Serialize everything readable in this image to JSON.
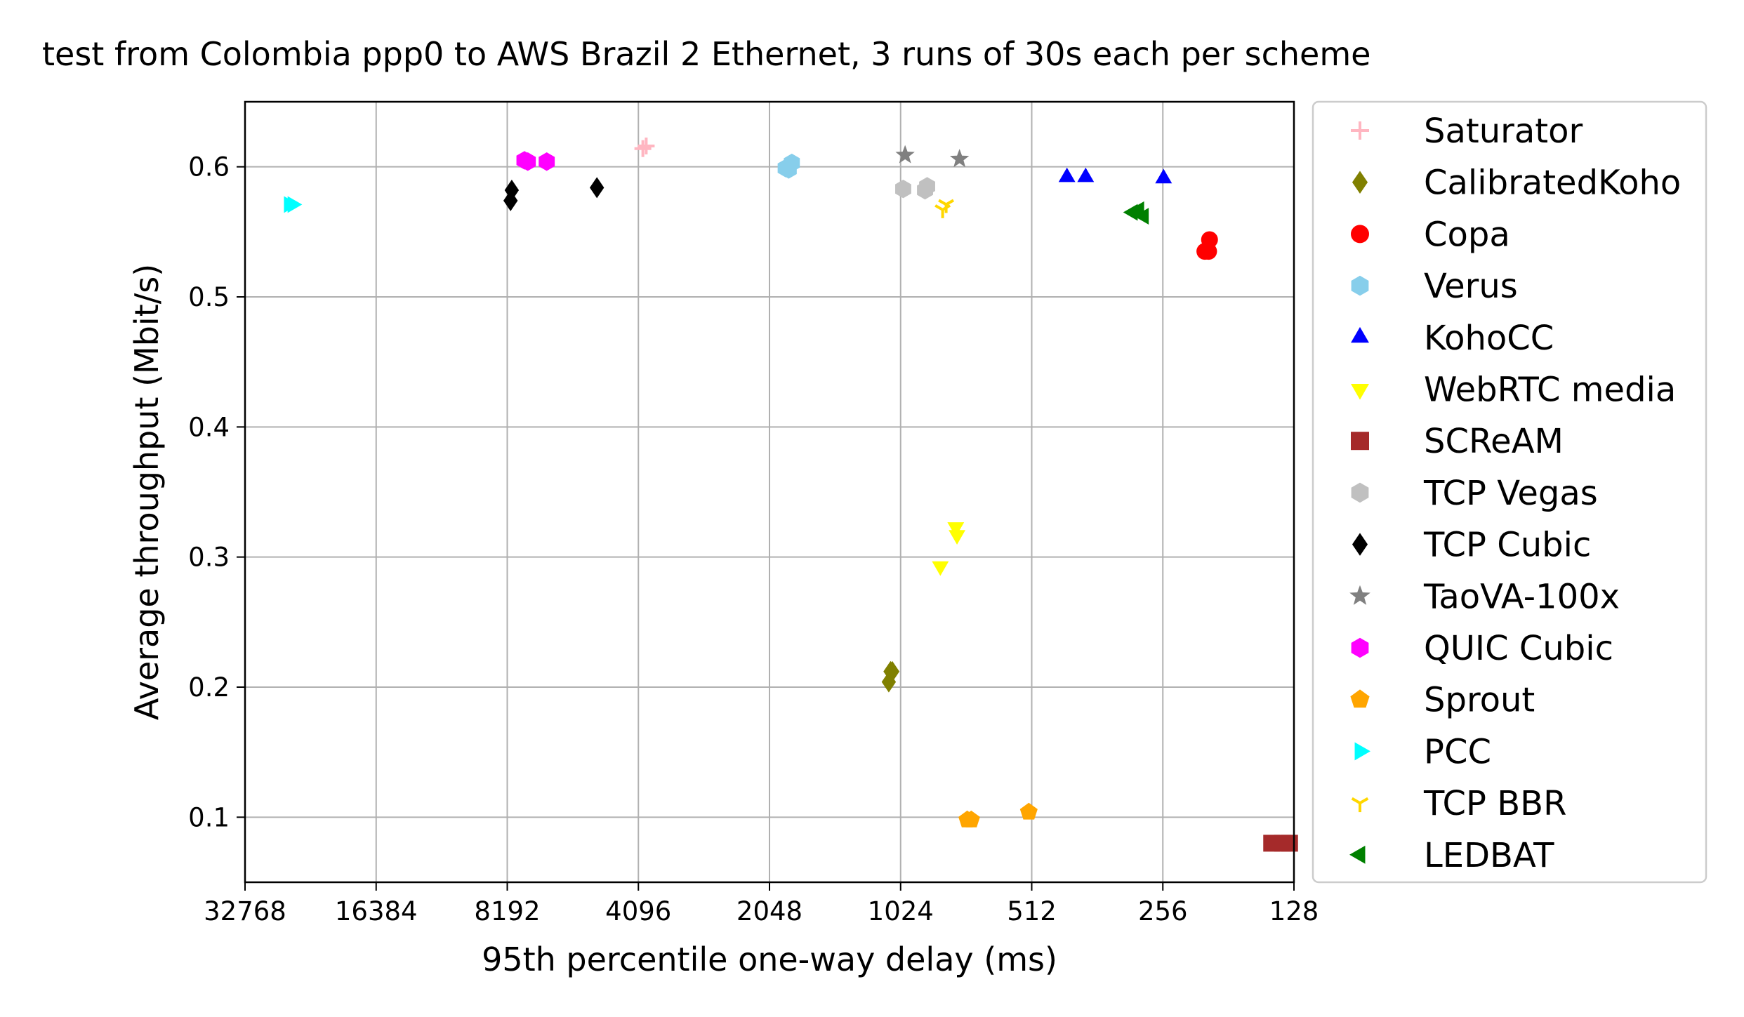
{
  "chart_data": {
    "type": "scatter",
    "title": "test from Colombia ppp0 to AWS Brazil 2 Ethernet, 3 runs of 30s each per scheme",
    "xlabel": "95th percentile one-way delay (ms)",
    "ylabel": "Average throughput (Mbit/s)",
    "x_scale": "log2",
    "x_reversed": true,
    "xlim": [
      32768,
      128
    ],
    "ylim": [
      0.05,
      0.65
    ],
    "x_ticks": [
      32768,
      16384,
      8192,
      4096,
      2048,
      1024,
      512,
      256,
      128
    ],
    "x_tick_labels": [
      "32768",
      "16384",
      "8192",
      "4096",
      "2048",
      "1024",
      "512",
      "256",
      "128"
    ],
    "y_ticks": [
      0.1,
      0.2,
      0.3,
      0.4,
      0.5,
      0.6
    ],
    "y_tick_labels": [
      "0.1",
      "0.2",
      "0.3",
      "0.4",
      "0.5",
      "0.6"
    ],
    "grid": true,
    "legend_position": "outside-right",
    "series": [
      {
        "name": "Saturator",
        "marker": "plus",
        "color": "#ffb6c1",
        "points": [
          [
            4000,
            0.614
          ],
          [
            3930,
            0.616
          ]
        ]
      },
      {
        "name": "CalibratedKoho",
        "marker": "diamond",
        "color": "#808000",
        "points": [
          [
            1090,
            0.204
          ],
          [
            1080,
            0.212
          ],
          [
            1070,
            0.212
          ]
        ]
      },
      {
        "name": "Copa",
        "marker": "circle",
        "color": "#ff0000",
        "points": [
          [
            200,
            0.544
          ],
          [
            205,
            0.535
          ],
          [
            201,
            0.535
          ]
        ]
      },
      {
        "name": "Verus",
        "marker": "hexagon",
        "color": "#87ceeb",
        "points": [
          [
            1850,
            0.598
          ],
          [
            1820,
            0.603
          ],
          [
            1880,
            0.599
          ]
        ]
      },
      {
        "name": "KohoCC",
        "marker": "triangle-up",
        "color": "#0000ff",
        "points": [
          [
            425,
            0.592
          ],
          [
            385,
            0.592
          ],
          [
            255,
            0.591
          ]
        ]
      },
      {
        "name": "WebRTC media",
        "marker": "triangle-down",
        "color": "#ffff00",
        "points": [
          [
            765,
            0.323
          ],
          [
            760,
            0.317
          ],
          [
            830,
            0.293
          ]
        ]
      },
      {
        "name": "SCReAM",
        "marker": "square",
        "color": "#a52a2a",
        "points": [
          [
            144,
            0.08
          ],
          [
            136,
            0.08
          ],
          [
            131,
            0.08
          ]
        ]
      },
      {
        "name": "TCP Vegas",
        "marker": "hexagon",
        "color": "#c0c0c0",
        "points": [
          [
            1010,
            0.583
          ],
          [
            900,
            0.582
          ],
          [
            890,
            0.585
          ]
        ]
      },
      {
        "name": "TCP Cubic",
        "marker": "diamond",
        "color": "#000000",
        "points": [
          [
            8050,
            0.574
          ],
          [
            8000,
            0.582
          ],
          [
            5100,
            0.584
          ]
        ]
      },
      {
        "name": "TaoVA-100x",
        "marker": "star",
        "color": "#808080",
        "points": [
          [
            1000,
            0.609
          ],
          [
            750,
            0.606
          ]
        ]
      },
      {
        "name": "QUIC Cubic",
        "marker": "hexagon",
        "color": "#ff00ff",
        "points": [
          [
            7480,
            0.605
          ],
          [
            7350,
            0.604
          ],
          [
            6650,
            0.604
          ]
        ]
      },
      {
        "name": "Sprout",
        "marker": "pentagon",
        "color": "#ffa500",
        "points": [
          [
            720,
            0.098
          ],
          [
            705,
            0.098
          ],
          [
            520,
            0.104
          ]
        ]
      },
      {
        "name": "PCC",
        "marker": "triangle-right",
        "color": "#00ffff",
        "points": [
          [
            26000,
            0.571
          ],
          [
            25500,
            0.571
          ]
        ]
      },
      {
        "name": "TCP BBR",
        "marker": "tri-down",
        "color": "#ffd700",
        "points": [
          [
            820,
            0.567
          ],
          [
            805,
            0.571
          ]
        ]
      },
      {
        "name": "LEDBAT",
        "marker": "triangle-left",
        "color": "#008000",
        "points": [
          [
            300,
            0.565
          ],
          [
            290,
            0.567
          ],
          [
            283,
            0.562
          ]
        ]
      }
    ]
  }
}
